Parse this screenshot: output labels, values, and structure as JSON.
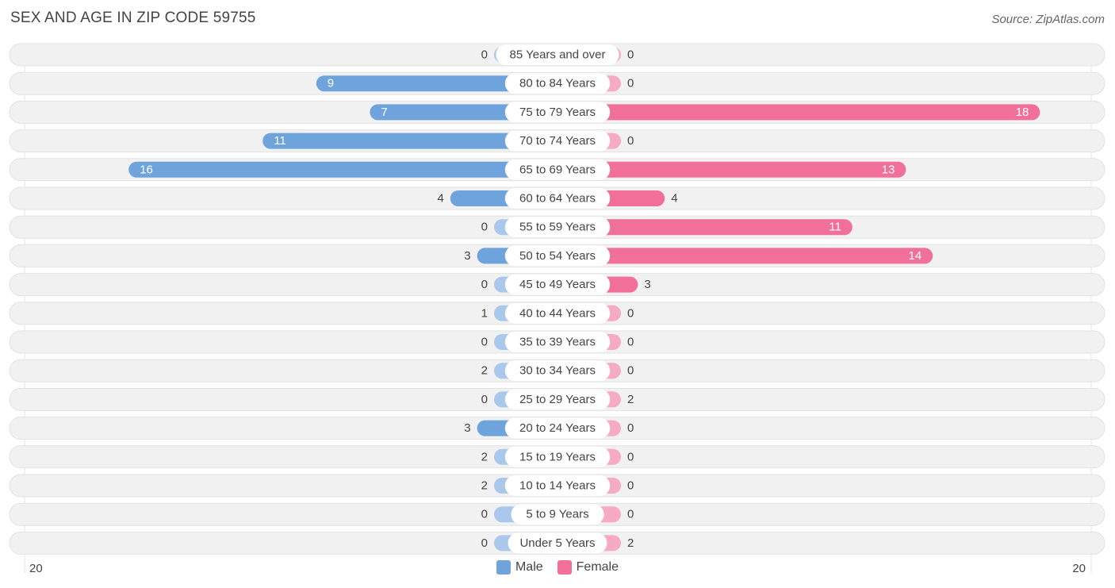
{
  "title": "SEX AND AGE IN ZIP CODE 59755",
  "source": "Source: ZipAtlas.com",
  "colors": {
    "male": "#6fa3dc",
    "male_light": "#a9c8eb",
    "female": "#f0709a",
    "female_light": "#f6aac3"
  },
  "chart_data": {
    "type": "bar",
    "orientation": "horizontal-diverging",
    "categories": [
      "85 Years and over",
      "80 to 84 Years",
      "75 to 79 Years",
      "70 to 74 Years",
      "65 to 69 Years",
      "60 to 64 Years",
      "55 to 59 Years",
      "50 to 54 Years",
      "45 to 49 Years",
      "40 to 44 Years",
      "35 to 39 Years",
      "30 to 34 Years",
      "25 to 29 Years",
      "20 to 24 Years",
      "15 to 19 Years",
      "10 to 14 Years",
      "5 to 9 Years",
      "Under 5 Years"
    ],
    "series": [
      {
        "name": "Male",
        "values": [
          0,
          9,
          7,
          11,
          16,
          4,
          0,
          3,
          0,
          1,
          0,
          2,
          0,
          3,
          2,
          2,
          0,
          0
        ]
      },
      {
        "name": "Female",
        "values": [
          0,
          0,
          18,
          0,
          13,
          4,
          11,
          14,
          3,
          0,
          0,
          0,
          2,
          0,
          0,
          0,
          0,
          2
        ]
      }
    ],
    "axis_min_label": "20",
    "axis_max_label": "20",
    "xlim": [
      -20,
      20
    ],
    "legend_position": "bottom-center"
  }
}
